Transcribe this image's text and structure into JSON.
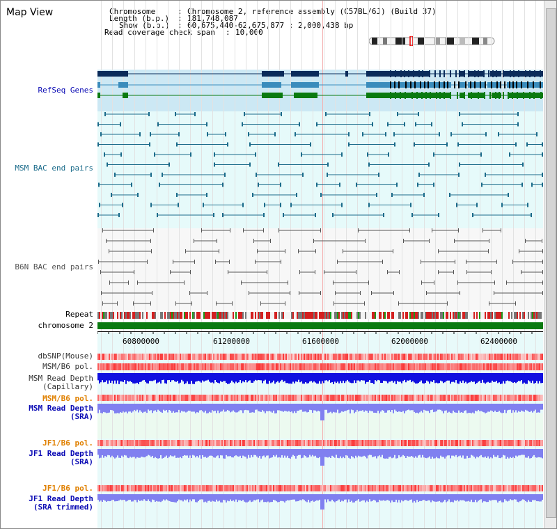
{
  "page": {
    "title": "Map View"
  },
  "info": {
    "chromosome_key": "Chromosome",
    "chromosome_val": "Chromosome 2, reference assembly (C57BL/6J) (Build 37)",
    "length_key": "Length (b.p.)",
    "length_val": "181,748,087",
    "show_key": "Show (b.p.)",
    "show_val": "60,675,440-62,675,877 : 2,000,438 bp",
    "span_key": "Read coverage check span",
    "span_val": "10,000"
  },
  "tracks": {
    "refseq": "RefSeq Genes",
    "msm_bac": "MSM BAC end pairs",
    "b6n_bac": "B6N BAC end pairs",
    "repeat": "Repeat",
    "chromosome": "chromosome 2",
    "dbsnp": "dbSNP(Mouse)",
    "msm_b6_pol": "MSM/B6 pol.",
    "msm_rd_cap_1": "MSM Read Depth",
    "msm_rd_cap_2": "(Capillary)",
    "msm_b6_pol_2": "MSM/B6 pol.",
    "msm_rd_sra_1": "MSM Read Depth",
    "msm_rd_sra_2": "(SRA)",
    "jf1_b6_pol": "JF1/B6 pol.",
    "jf1_rd_sra_1": "JF1 Read Depth",
    "jf1_rd_sra_2": "(SRA)",
    "jf1_b6_pol_2": "JF1/B6 pol.",
    "jf1_rd_trim_1": "JF1 Read Depth",
    "jf1_rd_trim_2": "(SRA trimmed)"
  },
  "axis": {
    "ticks": [
      "60800000",
      "61200000",
      "61600000",
      "62000000",
      "62400000"
    ]
  },
  "colors": {
    "refseq_bg": "#cce8f4",
    "bac_bg": "#e6fafa",
    "b6n_bg": "#f7f7f7",
    "gene_dark": "#0a2b5a",
    "gene_mid": "#3a8cbc",
    "gene_green": "#0a7a10",
    "msm_pair": "#1a6b8a",
    "b6n_pair": "#555555",
    "chromosome": "#0a7a10",
    "pol_red": "#f04848",
    "depth_blue": "#1010e0",
    "depth_light": "#8080f0",
    "track_light_bg": "#e8f8f0"
  }
}
